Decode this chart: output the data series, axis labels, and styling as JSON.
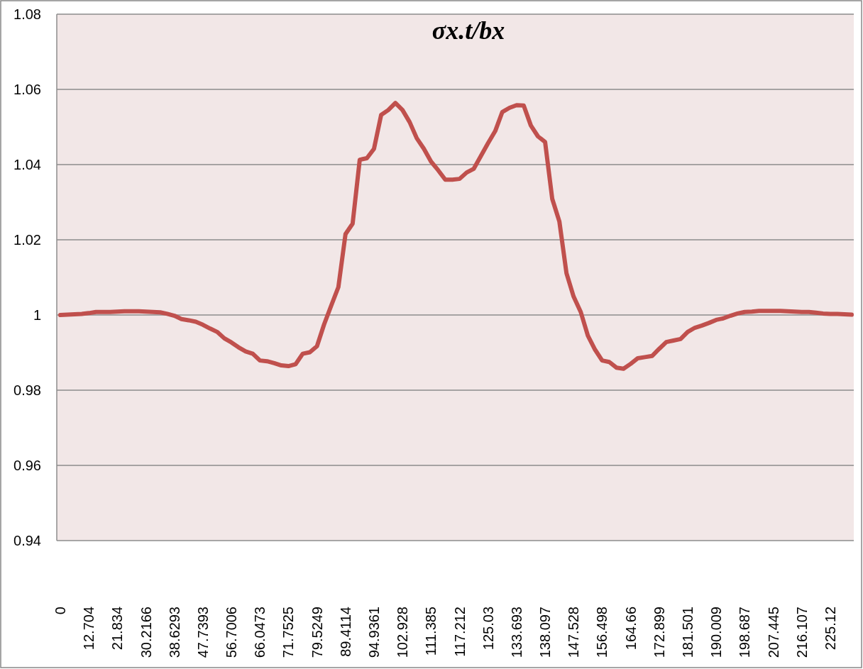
{
  "chart_data": {
    "type": "line",
    "title": "σx.t/bx",
    "categories": [
      "0",
      null,
      null,
      null,
      "12.704",
      null,
      null,
      null,
      "21.834",
      null,
      null,
      null,
      "30.2166",
      null,
      null,
      null,
      "38.6293",
      null,
      null,
      null,
      "47.7393",
      null,
      null,
      null,
      "56.7006",
      null,
      null,
      null,
      "66.0473",
      null,
      null,
      null,
      "71.7525",
      null,
      null,
      null,
      "79.5249",
      null,
      null,
      null,
      "89.4114",
      null,
      null,
      null,
      "94.9361",
      null,
      null,
      null,
      "102.928",
      null,
      null,
      null,
      "111.385",
      null,
      null,
      null,
      "117.212",
      null,
      null,
      null,
      "125.03",
      null,
      null,
      null,
      "133.693",
      null,
      null,
      null,
      "138.097",
      null,
      null,
      null,
      "147.528",
      null,
      null,
      null,
      "156.498",
      null,
      null,
      null,
      "164.66",
      null,
      null,
      null,
      "172.899",
      null,
      null,
      null,
      "181.501",
      null,
      null,
      null,
      "190.009",
      null,
      null,
      null,
      "198.687",
      null,
      null,
      null,
      "207.445",
      null,
      null,
      null,
      "216.107",
      null,
      null,
      null,
      "225.12",
      null,
      null,
      null
    ],
    "series": [
      {
        "color": "#c0504d",
        "values": [
          1.0,
          1.0001,
          1.0002,
          1.0003,
          1.0005,
          1.0008,
          1.0008,
          1.0008,
          1.0009,
          1.001,
          1.001,
          1.001,
          1.0009,
          1.0008,
          1.0007,
          1.0003,
          0.9998,
          0.9989,
          0.9986,
          0.9982,
          0.9974,
          0.9964,
          0.9955,
          0.9938,
          0.9927,
          0.9914,
          0.9903,
          0.9897,
          0.9879,
          0.9877,
          0.9872,
          0.9866,
          0.9864,
          0.9869,
          0.9897,
          0.9901,
          0.9917,
          0.9975,
          1.0025,
          1.0074,
          1.0215,
          1.0243,
          1.0413,
          1.0417,
          1.0442,
          1.0532,
          1.0545,
          1.0564,
          1.0545,
          1.0513,
          1.047,
          1.0442,
          1.0408,
          1.0385,
          1.036,
          1.036,
          1.0362,
          1.0379,
          1.0389,
          1.0423,
          1.0457,
          1.0489,
          1.054,
          1.0551,
          1.0558,
          1.0557,
          1.0504,
          1.0475,
          1.046,
          1.0309,
          1.0249,
          1.0111,
          1.0049,
          1.0008,
          0.9945,
          0.9908,
          0.9879,
          0.9875,
          0.986,
          0.9857,
          0.987,
          0.9885,
          0.9888,
          0.9891,
          0.991,
          0.9928,
          0.9932,
          0.9936,
          0.9955,
          0.9966,
          0.9972,
          0.9979,
          0.9987,
          0.9991,
          0.9998,
          1.0004,
          1.0008,
          1.0009,
          1.0011,
          1.0011,
          1.0011,
          1.0011,
          1.001,
          1.0009,
          1.0008,
          1.0008,
          1.0006,
          1.0004,
          1.0003,
          1.0003,
          1.0002,
          1.0001
        ]
      }
    ],
    "ylim": [
      0.94,
      1.08
    ],
    "yticks": [
      0.94,
      0.96,
      0.98,
      1,
      1.02,
      1.04,
      1.06,
      1.08
    ],
    "grid": "y",
    "marker": "none",
    "line_style": "solid"
  }
}
